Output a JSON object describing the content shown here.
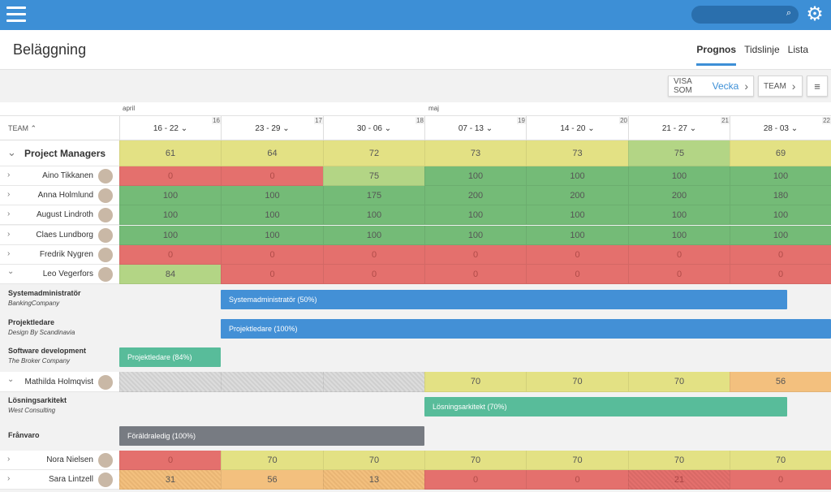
{
  "header": {
    "title": "Beläggning",
    "tabs": [
      "Prognos",
      "Tidslinje",
      "Lista"
    ],
    "active_tab": "Prognos"
  },
  "controls": {
    "visa_label": "VISA SOM",
    "visa_value": "Vecka",
    "team_label": "TEAM"
  },
  "months": {
    "april": "april",
    "maj": "maj"
  },
  "columns": {
    "team_header": "TEAM ⌃"
  },
  "weeks": [
    {
      "label": "16 - 22",
      "num": "16"
    },
    {
      "label": "23 - 29",
      "num": "17"
    },
    {
      "label": "30 - 06",
      "num": "18"
    },
    {
      "label": "07 - 13",
      "num": "19"
    },
    {
      "label": "14 - 20",
      "num": "20"
    },
    {
      "label": "21 - 27",
      "num": "21"
    },
    {
      "label": "28 - 03",
      "num": "22"
    }
  ],
  "group": {
    "name": "Project Managers",
    "values": [
      "61",
      "64",
      "72",
      "73",
      "73",
      "75",
      "69"
    ]
  },
  "people": [
    {
      "name": "Aino Tikkanen",
      "values": [
        "0",
        "0",
        "75",
        "100",
        "100",
        "100",
        "100"
      ]
    },
    {
      "name": "Anna Holmlund",
      "values": [
        "100",
        "100",
        "175",
        "200",
        "200",
        "200",
        "180"
      ]
    },
    {
      "name": "August Lindroth",
      "values": [
        "100",
        "100",
        "100",
        "100",
        "100",
        "100",
        "100"
      ]
    },
    {
      "name": "Claes Lundborg",
      "values": [
        "100",
        "100",
        "100",
        "100",
        "100",
        "100",
        "100"
      ]
    },
    {
      "name": "Fredrik Nygren",
      "values": [
        "0",
        "0",
        "0",
        "0",
        "0",
        "0",
        "0"
      ]
    },
    {
      "name": "Leo Vegerfors",
      "values": [
        "84",
        "0",
        "0",
        "0",
        "0",
        "0",
        "0"
      ]
    }
  ],
  "leo_projects": [
    {
      "title": "Systemadministratör",
      "company": "BankingCompany",
      "bar": "Systemadministratör (50%)"
    },
    {
      "title": "Projektledare",
      "company": "Design By Scandinavia",
      "bar": "Projektledare (100%)"
    },
    {
      "title": "Software development",
      "company": "The Broker Company",
      "bar": "Projektledare (84%)"
    }
  ],
  "mathilda": {
    "name": "Mathilda Holmqvist",
    "values": [
      "",
      "",
      "",
      "70",
      "70",
      "70",
      "56"
    ]
  },
  "mathilda_projects": [
    {
      "title": "Lösningsarkitekt",
      "company": "West Consulting",
      "bar": "Lösningsarkitekt (70%)"
    },
    {
      "title": "Frånvaro",
      "company": "",
      "bar": "Föräldraledig (100%)"
    }
  ],
  "nora": {
    "name": "Nora Nielsen",
    "values": [
      "0",
      "70",
      "70",
      "70",
      "70",
      "70",
      "70"
    ]
  },
  "sara": {
    "name": "Sara Lintzell",
    "values": [
      "31",
      "56",
      "13",
      "0",
      "0",
      "21",
      "0"
    ]
  }
}
